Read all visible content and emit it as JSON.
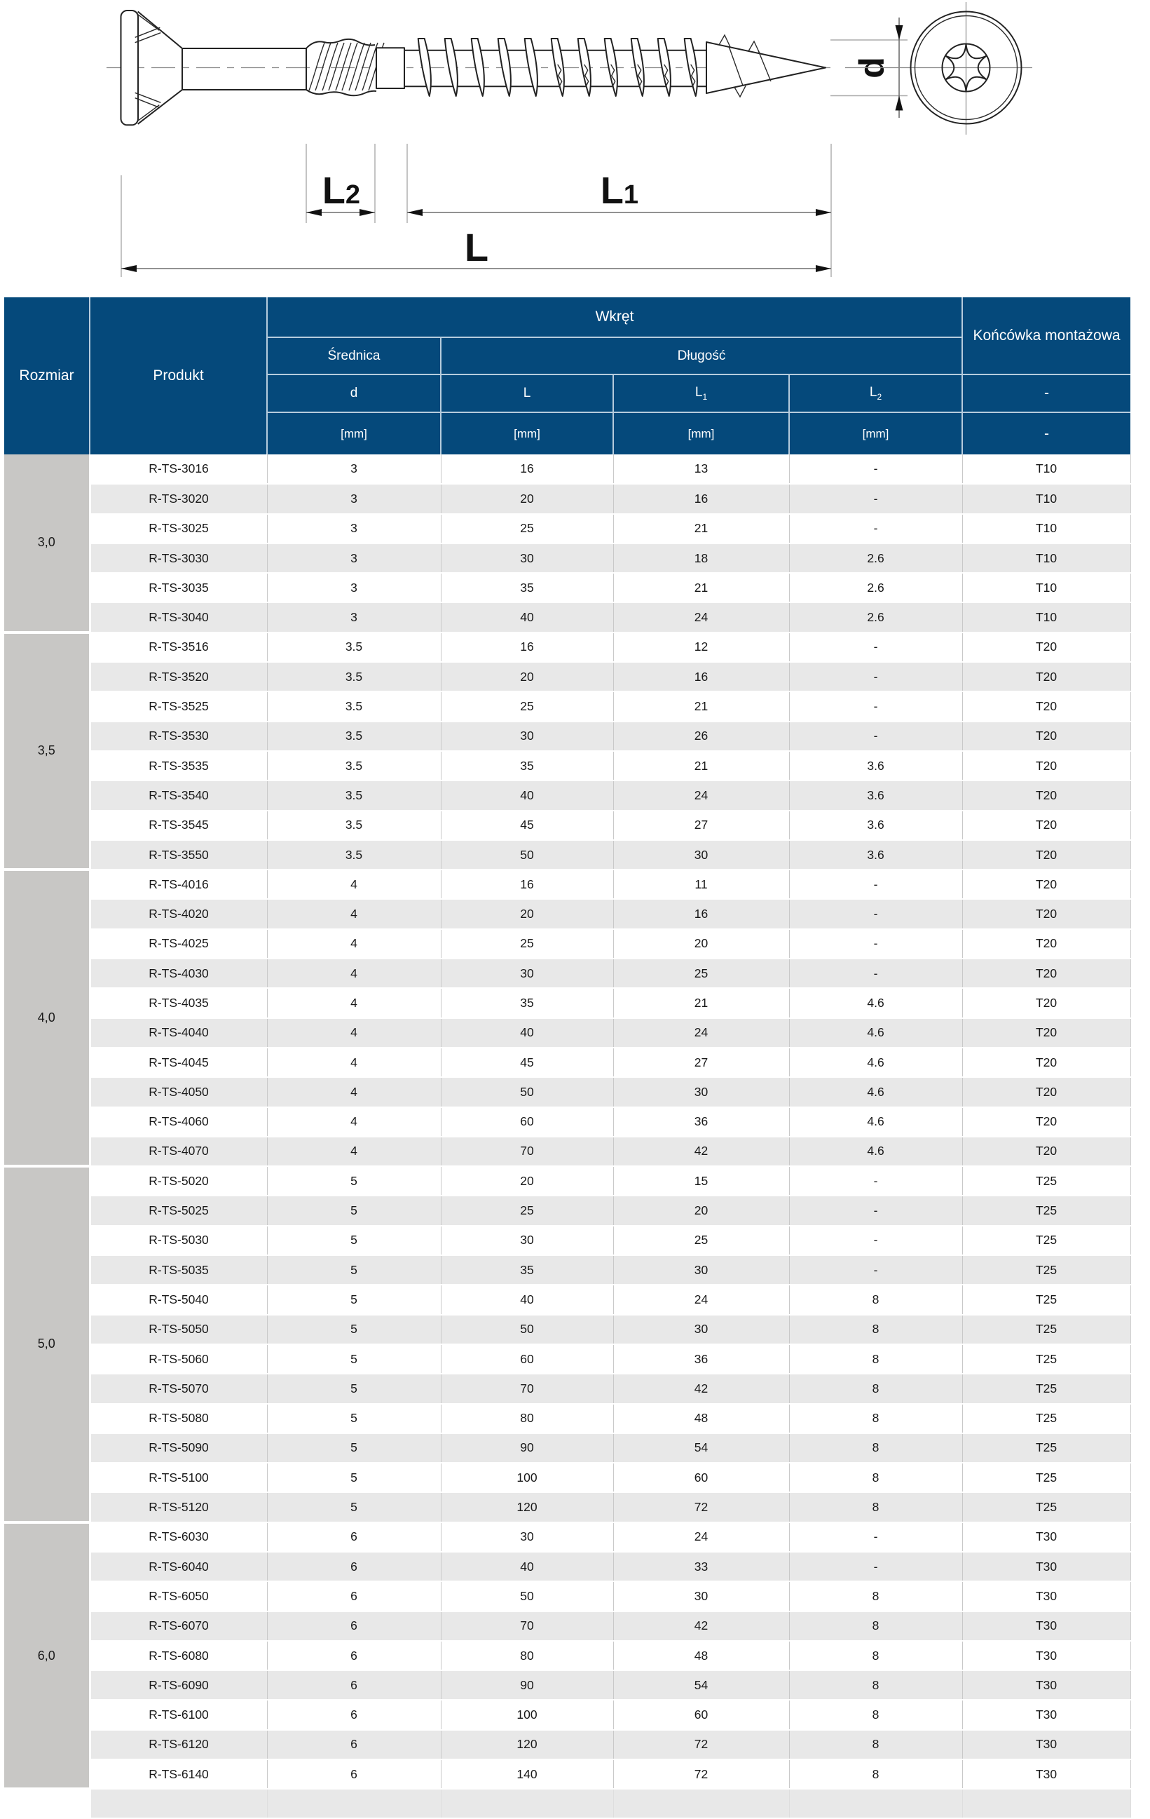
{
  "colors": {
    "header_blue": "#05497b",
    "header_divider": "#b6ccdd",
    "size_column_gray": "#c8c7c5",
    "alt_row_gray": "#e8e8e8",
    "line_art": "#222222"
  },
  "diagram": {
    "d_label": "d",
    "L_label": "L",
    "L1_base": "L",
    "L1_sub": "1",
    "L2_base": "L",
    "L2_sub": "2"
  },
  "table": {
    "header": {
      "rozmiar": "Rozmiar",
      "produkt": "Produkt",
      "wkret": "Wkręt",
      "srednica": "Średnica",
      "dlugosc": "Długość",
      "d": "d",
      "L": "L",
      "L1_base": "L",
      "L1_sub": "1",
      "L2_base": "L",
      "L2_sub": "2",
      "koncowka": "Końcówka montażowa",
      "unit_d": "[mm]",
      "unit_L": "[mm]",
      "unit_L1": "[mm]",
      "unit_L2": "[mm]",
      "dash_row3": "-",
      "dash_row4": "-"
    },
    "groups": [
      {
        "size": "3,0",
        "rows": [
          [
            "R-TS-3016",
            "3",
            "16",
            "13",
            "-",
            "T10"
          ],
          [
            "R-TS-3020",
            "3",
            "20",
            "16",
            "-",
            "T10"
          ],
          [
            "R-TS-3025",
            "3",
            "25",
            "21",
            "-",
            "T10"
          ],
          [
            "R-TS-3030",
            "3",
            "30",
            "18",
            "2.6",
            "T10"
          ],
          [
            "R-TS-3035",
            "3",
            "35",
            "21",
            "2.6",
            "T10"
          ],
          [
            "R-TS-3040",
            "3",
            "40",
            "24",
            "2.6",
            "T10"
          ]
        ]
      },
      {
        "size": "3,5",
        "rows": [
          [
            "R-TS-3516",
            "3.5",
            "16",
            "12",
            "-",
            "T20"
          ],
          [
            "R-TS-3520",
            "3.5",
            "20",
            "16",
            "-",
            "T20"
          ],
          [
            "R-TS-3525",
            "3.5",
            "25",
            "21",
            "-",
            "T20"
          ],
          [
            "R-TS-3530",
            "3.5",
            "30",
            "26",
            "-",
            "T20"
          ],
          [
            "R-TS-3535",
            "3.5",
            "35",
            "21",
            "3.6",
            "T20"
          ],
          [
            "R-TS-3540",
            "3.5",
            "40",
            "24",
            "3.6",
            "T20"
          ],
          [
            "R-TS-3545",
            "3.5",
            "45",
            "27",
            "3.6",
            "T20"
          ],
          [
            "R-TS-3550",
            "3.5",
            "50",
            "30",
            "3.6",
            "T20"
          ]
        ]
      },
      {
        "size": "4,0",
        "rows": [
          [
            "R-TS-4016",
            "4",
            "16",
            "11",
            "-",
            "T20"
          ],
          [
            "R-TS-4020",
            "4",
            "20",
            "16",
            "-",
            "T20"
          ],
          [
            "R-TS-4025",
            "4",
            "25",
            "20",
            "-",
            "T20"
          ],
          [
            "R-TS-4030",
            "4",
            "30",
            "25",
            "-",
            "T20"
          ],
          [
            "R-TS-4035",
            "4",
            "35",
            "21",
            "4.6",
            "T20"
          ],
          [
            "R-TS-4040",
            "4",
            "40",
            "24",
            "4.6",
            "T20"
          ],
          [
            "R-TS-4045",
            "4",
            "45",
            "27",
            "4.6",
            "T20"
          ],
          [
            "R-TS-4050",
            "4",
            "50",
            "30",
            "4.6",
            "T20"
          ],
          [
            "R-TS-4060",
            "4",
            "60",
            "36",
            "4.6",
            "T20"
          ],
          [
            "R-TS-4070",
            "4",
            "70",
            "42",
            "4.6",
            "T20"
          ]
        ]
      },
      {
        "size": "5,0",
        "rows": [
          [
            "R-TS-5020",
            "5",
            "20",
            "15",
            "-",
            "T25"
          ],
          [
            "R-TS-5025",
            "5",
            "25",
            "20",
            "-",
            "T25"
          ],
          [
            "R-TS-5030",
            "5",
            "30",
            "25",
            "-",
            "T25"
          ],
          [
            "R-TS-5035",
            "5",
            "35",
            "30",
            "-",
            "T25"
          ],
          [
            "R-TS-5040",
            "5",
            "40",
            "24",
            "8",
            "T25"
          ],
          [
            "R-TS-5050",
            "5",
            "50",
            "30",
            "8",
            "T25"
          ],
          [
            "R-TS-5060",
            "5",
            "60",
            "36",
            "8",
            "T25"
          ],
          [
            "R-TS-5070",
            "5",
            "70",
            "42",
            "8",
            "T25"
          ],
          [
            "R-TS-5080",
            "5",
            "80",
            "48",
            "8",
            "T25"
          ],
          [
            "R-TS-5090",
            "5",
            "90",
            "54",
            "8",
            "T25"
          ],
          [
            "R-TS-5100",
            "5",
            "100",
            "60",
            "8",
            "T25"
          ],
          [
            "R-TS-5120",
            "5",
            "120",
            "72",
            "8",
            "T25"
          ]
        ]
      },
      {
        "size": "6,0",
        "rows": [
          [
            "R-TS-6030",
            "6",
            "30",
            "24",
            "-",
            "T30"
          ],
          [
            "R-TS-6040",
            "6",
            "40",
            "33",
            "-",
            "T30"
          ],
          [
            "R-TS-6050",
            "6",
            "50",
            "30",
            "8",
            "T30"
          ],
          [
            "R-TS-6070",
            "6",
            "70",
            "42",
            "8",
            "T30"
          ],
          [
            "R-TS-6080",
            "6",
            "80",
            "48",
            "8",
            "T30"
          ],
          [
            "R-TS-6090",
            "6",
            "90",
            "54",
            "8",
            "T30"
          ],
          [
            "R-TS-6100",
            "6",
            "100",
            "60",
            "8",
            "T30"
          ],
          [
            "R-TS-6120",
            "6",
            "120",
            "72",
            "8",
            "T30"
          ],
          [
            "R-TS-6140",
            "6",
            "140",
            "72",
            "8",
            "T30"
          ]
        ]
      }
    ]
  }
}
